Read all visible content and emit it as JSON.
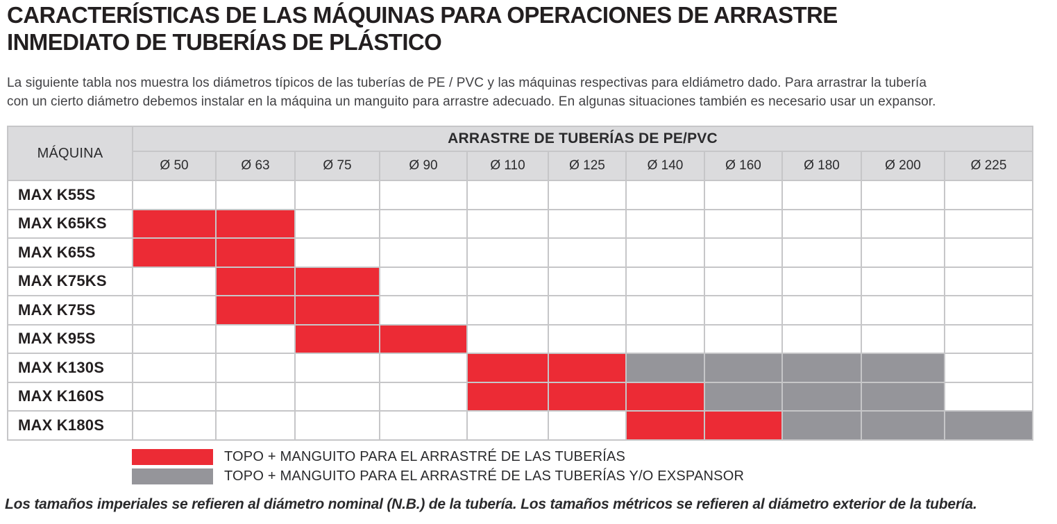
{
  "header": {
    "title_line1": "CARACTERÍSTICAS DE LAS MÁQUINAS PARA OPERACIONES DE ARRASTRE",
    "title_line2": "INMEDIATO DE TUBERÍAS DE PLÁSTICO",
    "intro_line1": "La siguiente tabla nos muestra los diámetros típicos de las tuberías de PE / PVC y las máquinas respectivas para eldiámetro dado. Para arrastrar la tubería",
    "intro_line2": "con un cierto diámetro debemos instalar en la máquina un manguito para arrastre adecuado. En algunas situaciones también es necesario  usar un expansor."
  },
  "table": {
    "corner_header": "MÁQUINA",
    "group_header": "ARRASTRE DE TUBERÍAS DE PE/PVC",
    "diameter_columns": [
      "Ø 50",
      "Ø 63",
      "Ø 75",
      "Ø 90",
      "Ø 110",
      "Ø 125",
      "Ø 140",
      "Ø 160",
      "Ø 180",
      "Ø 200",
      "Ø 225"
    ],
    "rows": [
      {
        "machine": "MAX K55S",
        "cells": [
          "none",
          "none",
          "none",
          "none",
          "none",
          "none",
          "none",
          "none",
          "none",
          "none",
          "none"
        ]
      },
      {
        "machine": "MAX K65KS",
        "cells": [
          "red",
          "red",
          "none",
          "none",
          "none",
          "none",
          "none",
          "none",
          "none",
          "none",
          "none"
        ]
      },
      {
        "machine": "MAX K65S",
        "cells": [
          "red",
          "red",
          "none",
          "none",
          "none",
          "none",
          "none",
          "none",
          "none",
          "none",
          "none"
        ]
      },
      {
        "machine": "MAX K75KS",
        "cells": [
          "none",
          "red",
          "red",
          "none",
          "none",
          "none",
          "none",
          "none",
          "none",
          "none",
          "none"
        ]
      },
      {
        "machine": "MAX K75S",
        "cells": [
          "none",
          "red",
          "red",
          "none",
          "none",
          "none",
          "none",
          "none",
          "none",
          "none",
          "none"
        ]
      },
      {
        "machine": "MAX K95S",
        "cells": [
          "none",
          "none",
          "red",
          "red",
          "none",
          "none",
          "none",
          "none",
          "none",
          "none",
          "none"
        ]
      },
      {
        "machine": "MAX K130S",
        "cells": [
          "none",
          "none",
          "none",
          "none",
          "red",
          "red",
          "gray",
          "gray",
          "gray",
          "gray",
          "none"
        ]
      },
      {
        "machine": "MAX K160S",
        "cells": [
          "none",
          "none",
          "none",
          "none",
          "red",
          "red",
          "red",
          "gray",
          "gray",
          "gray",
          "none"
        ]
      },
      {
        "machine": "MAX K180S",
        "cells": [
          "none",
          "none",
          "none",
          "none",
          "none",
          "none",
          "red",
          "red",
          "gray",
          "gray",
          "gray"
        ]
      }
    ]
  },
  "legend": [
    {
      "color_name": "red",
      "label": "TOPO + MANGUITO PARA EL ARRASTRÉ DE LAS TUBERÍAS"
    },
    {
      "color_name": "gray",
      "label": "TOPO + MANGUITO PARA EL ARRASTRÉ DE LAS TUBERÍAS Y/O EXSPANSOR"
    }
  ],
  "footnote": "Los tamaños imperiales se refieren al diámetro nominal (N.B.) de la tubería. Los tamaños métricos se refieren al diámetro exterior de la tubería.",
  "colors": {
    "cell_red": "#EC2B35",
    "cell_gray": "#95959A",
    "header_bg": "#DBDBDD"
  }
}
